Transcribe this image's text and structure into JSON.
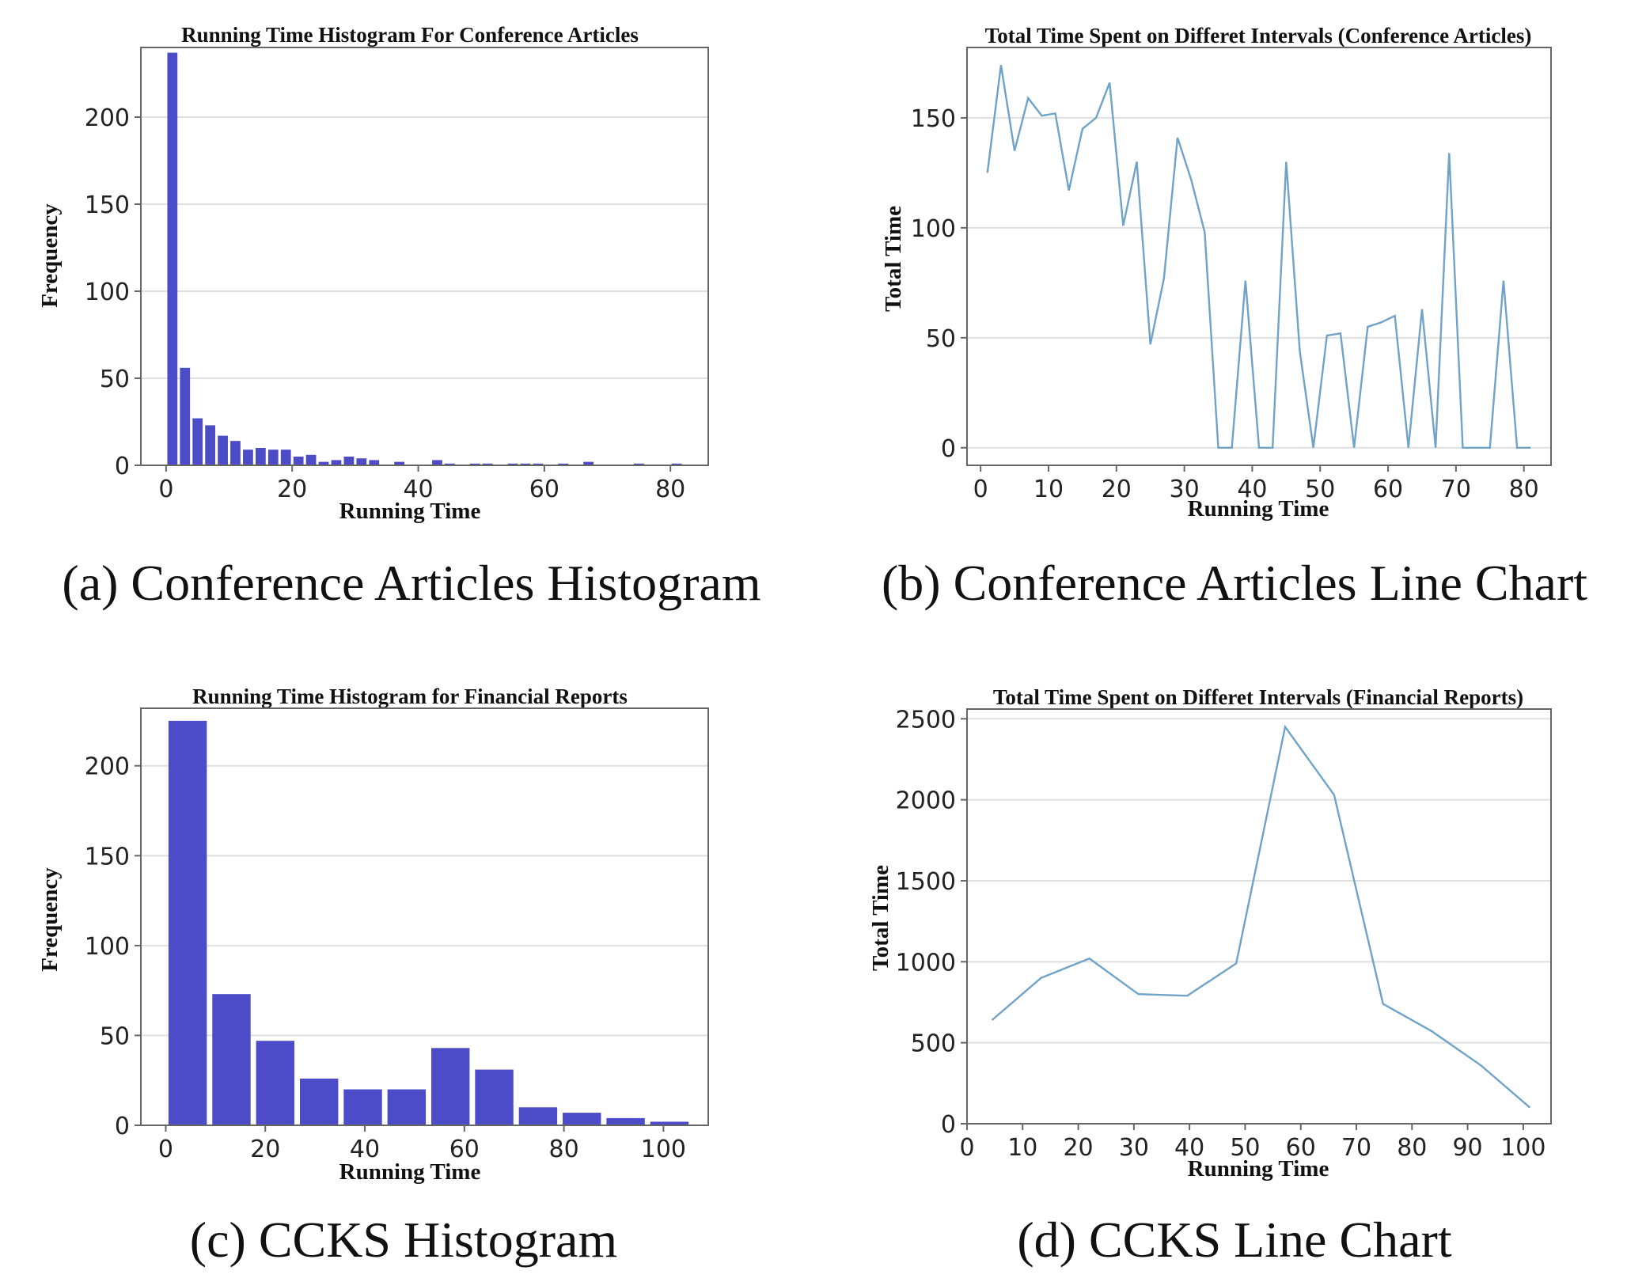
{
  "chart_data": [
    {
      "type": "bar",
      "title": "Running Time Histogram For Conference Articles",
      "xlabel": "Running Time",
      "ylabel": "Frequency",
      "xlim": [
        -4,
        86
      ],
      "ylim": [
        0,
        240
      ],
      "xticks": [
        0,
        20,
        40,
        60,
        80
      ],
      "yticks": [
        0,
        50,
        100,
        150,
        200
      ],
      "bar_width": 1.6,
      "grid": "horizontal",
      "x": [
        1,
        3,
        5,
        7,
        9,
        11,
        13,
        15,
        17,
        19,
        21,
        23,
        25,
        27,
        29,
        31,
        33,
        37,
        43,
        45,
        49,
        51,
        55,
        57,
        59,
        63,
        67,
        75,
        81
      ],
      "values": [
        237,
        56,
        27,
        23,
        17,
        14,
        9,
        10,
        9,
        9,
        5,
        6,
        2,
        3,
        5,
        4,
        3,
        2,
        3,
        1,
        1,
        1,
        1,
        1,
        1,
        1,
        2,
        1,
        1
      ],
      "caption": "(a) Conference Articles Histogram"
    },
    {
      "type": "line",
      "title": "Total Time Spent on Differet Intervals (Conference Articles)",
      "xlabel": "Running Time",
      "ylabel": "Total Time",
      "xlim": [
        -2,
        84
      ],
      "ylim": [
        -8,
        182
      ],
      "xticks": [
        0,
        10,
        20,
        30,
        40,
        50,
        60,
        70,
        80
      ],
      "yticks": [
        0,
        50,
        100,
        150
      ],
      "grid": "horizontal",
      "x": [
        1,
        3,
        5,
        7,
        9,
        11,
        13,
        15,
        17,
        19,
        21,
        23,
        25,
        27,
        29,
        31,
        33,
        35,
        37,
        39,
        41,
        43,
        45,
        47,
        49,
        51,
        53,
        55,
        57,
        59,
        61,
        63,
        65,
        67,
        69,
        71,
        73,
        75,
        77,
        79,
        81
      ],
      "y": [
        125,
        174,
        135,
        159,
        151,
        152,
        117,
        145,
        150,
        166,
        101,
        130,
        47,
        77,
        141,
        122,
        98,
        0,
        0,
        76,
        0,
        0,
        130,
        44,
        0,
        51,
        52,
        0,
        55,
        57,
        60,
        0,
        63,
        0,
        134,
        0,
        0,
        0,
        76,
        0,
        0
      ],
      "caption": "(b) Conference Articles Line Chart"
    },
    {
      "type": "bar",
      "title": "Running Time Histogram for Financial Reports",
      "xlabel": "Running Time",
      "ylabel": "Frequency",
      "xlim": [
        -5,
        109
      ],
      "ylim": [
        0,
        232
      ],
      "xticks": [
        0,
        20,
        40,
        60,
        80,
        100
      ],
      "yticks": [
        0,
        50,
        100,
        150,
        200
      ],
      "bar_width": 7.7,
      "grid": "horizontal",
      "x": [
        4.4,
        13.2,
        22,
        30.8,
        39.6,
        48.4,
        57.2,
        66,
        74.8,
        83.6,
        92.4,
        101.2
      ],
      "values": [
        225,
        73,
        47,
        26,
        20,
        20,
        43,
        31,
        10,
        7,
        4,
        2
      ],
      "caption": "(c) CCKS Histogram"
    },
    {
      "type": "line",
      "title": "Total Time Spent on Differet Intervals (Financial Reports)",
      "xlabel": "Running Time",
      "ylabel": "Total Time",
      "xlim": [
        0,
        105
      ],
      "ylim": [
        0,
        2560
      ],
      "xticks": [
        0,
        10,
        20,
        30,
        40,
        50,
        60,
        70,
        80,
        90,
        100
      ],
      "yticks": [
        0,
        500,
        1000,
        1500,
        2000,
        2500
      ],
      "grid": "horizontal",
      "x": [
        4.5,
        13.3,
        22,
        30.8,
        39.6,
        48.4,
        57.2,
        66,
        74.8,
        83.6,
        92.4,
        101.2
      ],
      "y": [
        640,
        900,
        1020,
        800,
        790,
        990,
        2450,
        2030,
        740,
        570,
        360,
        100
      ],
      "caption": "(d) CCKS Line Chart"
    }
  ]
}
